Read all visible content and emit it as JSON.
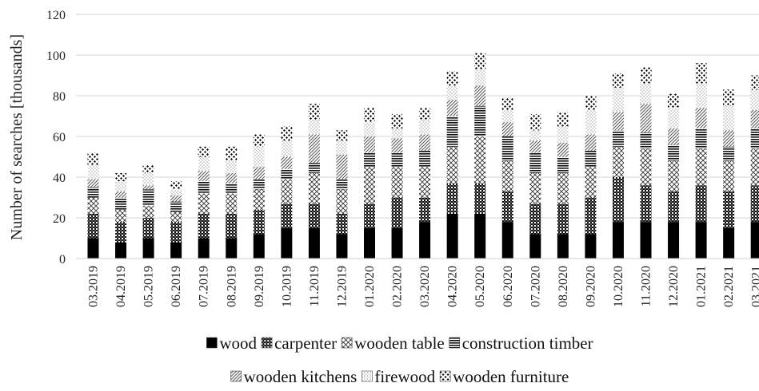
{
  "chart_data": {
    "type": "bar",
    "stacked": true,
    "title": "",
    "xlabel": "",
    "ylabel": "Number of searches [thousands]",
    "ylim": [
      0,
      120
    ],
    "yticks": [
      0,
      20,
      40,
      60,
      80,
      100,
      120
    ],
    "grid": true,
    "legend_position": "bottom",
    "categories": [
      "03.2019",
      "04.2019",
      "05.2019",
      "06.2019",
      "07.2019",
      "08.2019",
      "09.2019",
      "10.2019",
      "11.2019",
      "12.2019",
      "01.2020",
      "02.2020",
      "03.2020",
      "04.2020",
      "05.2020",
      "06.2020",
      "07.2020",
      "08.2020",
      "09.2020",
      "10.2020",
      "11.2020",
      "12.2020",
      "01.2021",
      "02.2021",
      "03.2021"
    ],
    "series": [
      {
        "name": "wood",
        "pattern": "solid",
        "values": [
          10,
          8,
          10,
          8,
          10,
          10,
          12,
          15,
          15,
          12,
          15,
          15,
          18,
          22,
          22,
          18,
          12,
          12,
          12,
          18,
          18,
          18,
          18,
          15,
          18
        ]
      },
      {
        "name": "carpenter",
        "pattern": "checker",
        "values": [
          12,
          10,
          10,
          10,
          12,
          12,
          12,
          12,
          12,
          10,
          12,
          15,
          12,
          15,
          15,
          15,
          15,
          15,
          18,
          22,
          18,
          15,
          18,
          18,
          18
        ]
      },
      {
        "name": "wooden table",
        "pattern": "diagonal-cross",
        "values": [
          8,
          6,
          6,
          5,
          10,
          10,
          10,
          12,
          15,
          12,
          18,
          15,
          15,
          18,
          23,
          15,
          15,
          15,
          15,
          15,
          18,
          15,
          18,
          15,
          18
        ]
      },
      {
        "name": "construction timber",
        "pattern": "horizontal",
        "values": [
          5,
          6,
          8,
          5,
          6,
          5,
          5,
          5,
          5,
          5,
          7,
          7,
          8,
          15,
          15,
          12,
          10,
          8,
          8,
          8,
          8,
          8,
          10,
          7,
          10
        ]
      },
      {
        "name": "wooden kitchens",
        "pattern": "diagonal",
        "values": [
          4,
          3,
          2,
          3,
          5,
          5,
          6,
          6,
          14,
          12,
          8,
          7,
          8,
          8,
          10,
          7,
          6,
          7,
          8,
          9,
          14,
          8,
          10,
          8,
          9
        ]
      },
      {
        "name": "firewood",
        "pattern": "dots",
        "values": [
          7,
          5,
          6,
          3,
          7,
          6,
          10,
          8,
          7,
          7,
          7,
          5,
          7,
          7,
          8,
          6,
          5,
          8,
          12,
          12,
          10,
          10,
          12,
          12,
          10
        ]
      },
      {
        "name": "wooden furniture",
        "pattern": "diamonds",
        "values": [
          6,
          4,
          4,
          4,
          5,
          7,
          6,
          7,
          8,
          5,
          7,
          7,
          6,
          7,
          8,
          6,
          8,
          7,
          7,
          7,
          8,
          7,
          10,
          8,
          7
        ]
      }
    ]
  }
}
